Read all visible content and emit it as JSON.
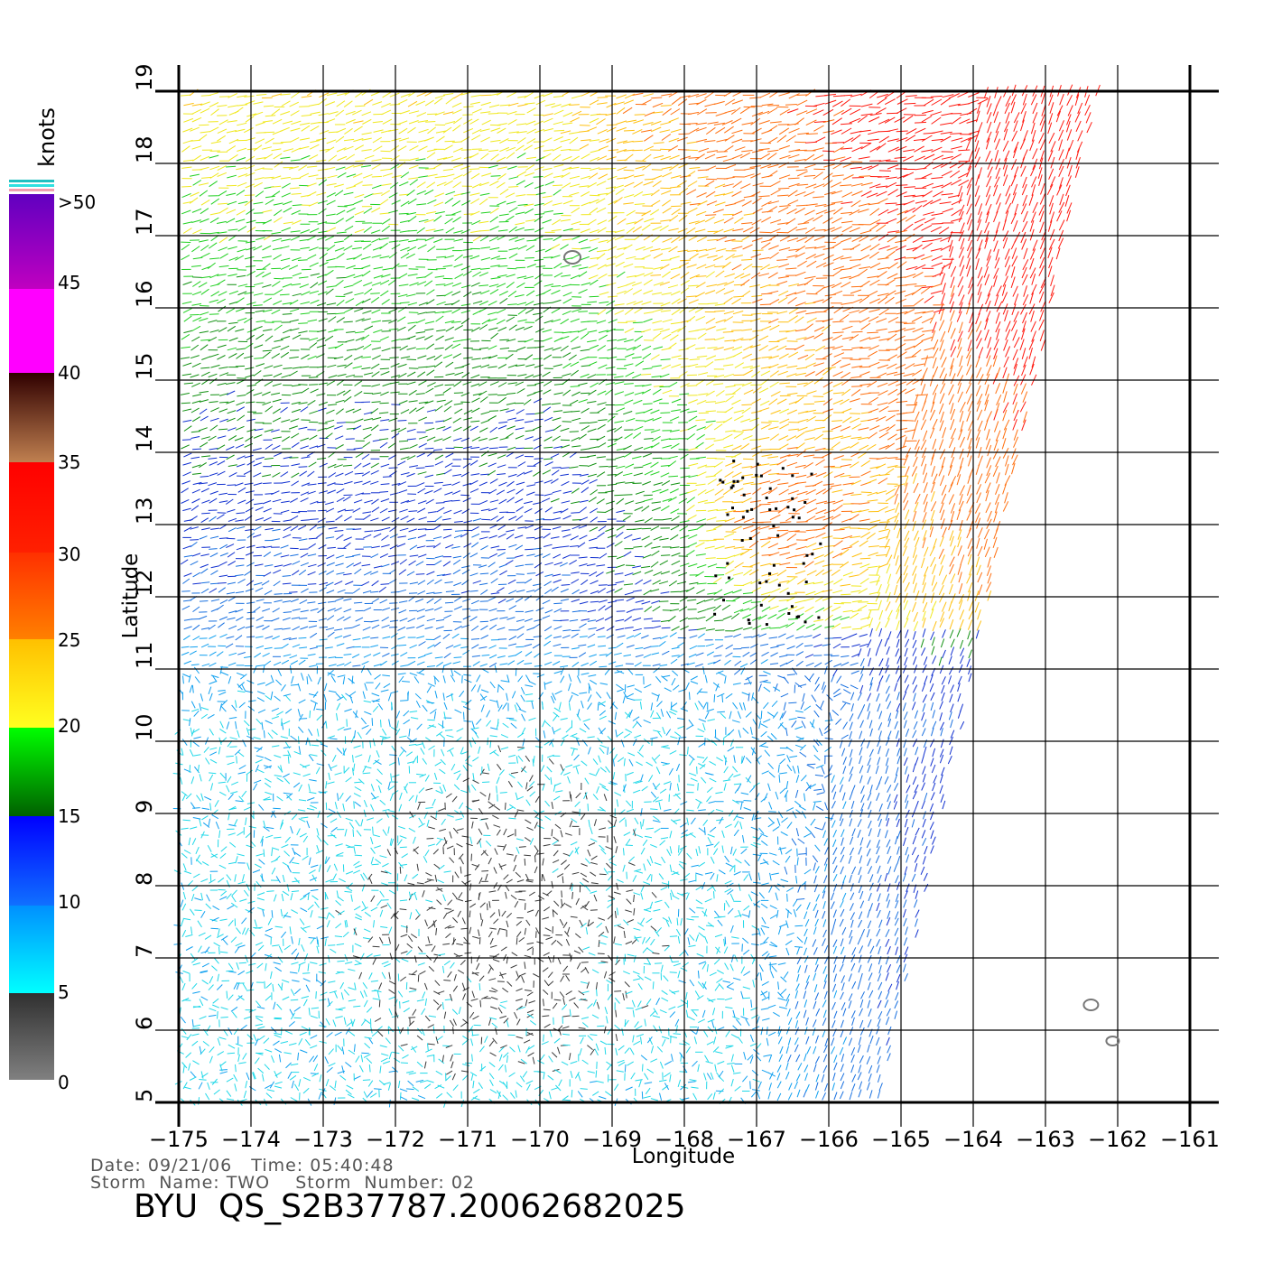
{
  "map": {
    "x_ticks": [
      "−175",
      "−174",
      "−173",
      "−172",
      "−171",
      "−170",
      "−169",
      "−168",
      "−167",
      "−166",
      "−165",
      "−164",
      "−163",
      "−162",
      "−161"
    ],
    "y_ticks": [
      "5",
      "6",
      "7",
      "8",
      "9",
      "10",
      "11",
      "12",
      "13",
      "14",
      "15",
      "16",
      "17",
      "18",
      "19"
    ],
    "lon_range": [
      -175,
      -161
    ],
    "lat_range": [
      5,
      19
    ],
    "xlabel": "Longitude",
    "ylabel": "Latitude"
  },
  "legend": {
    "title": "knots",
    "labels": [
      "0",
      "5",
      "10",
      "15",
      "20",
      "25",
      "30",
      "35",
      "40",
      "45",
      ">50"
    ],
    "colors": {
      "0_5": [
        "#808080",
        "#303030"
      ],
      "5_10": [
        "#00ffff",
        "#0090ff"
      ],
      "10_15": [
        "#1070ff",
        "#0000ff"
      ],
      "15_20": [
        "#006000",
        "#00ff00"
      ],
      "20_25": [
        "#ffff20",
        "#ffc000"
      ],
      "25_30": [
        "#ff8000",
        "#ff3000"
      ],
      "30_35": [
        "#ff2000",
        "#ff0000"
      ],
      "35_40": [
        "#c08050",
        "#300000"
      ],
      "40_45": [
        "#ff00ff",
        "#ff00ff"
      ],
      "45_50": [
        "#c000c0",
        "#6000c0"
      ]
    }
  },
  "footer": {
    "date_line": "Date: 09/21/06   Time: 05:40:48",
    "storm_line": "Storm  Name: TWO    Storm  Number: 02",
    "file_id": "BYU  QS_S2B37787.20062682025"
  }
}
